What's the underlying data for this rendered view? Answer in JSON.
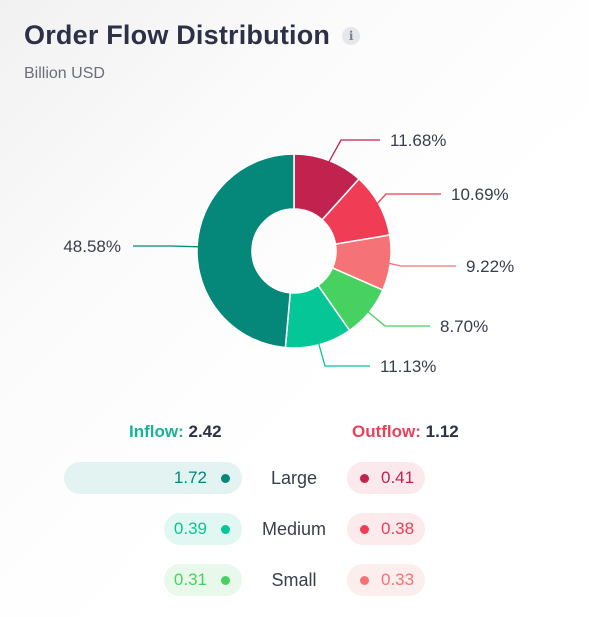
{
  "header": {
    "title": "Order Flow Distribution",
    "info_icon": "info-icon",
    "subtitle": "Billion USD"
  },
  "chart_data": {
    "type": "pie",
    "donut": true,
    "labels": [
      "Outflow Large",
      "Outflow Medium",
      "Outflow Small",
      "Inflow Small",
      "Inflow Medium",
      "Inflow Large"
    ],
    "values": [
      11.68,
      10.69,
      9.22,
      8.7,
      11.13,
      48.58
    ],
    "display_labels": [
      "11.68%",
      "10.69%",
      "9.22%",
      "8.70%",
      "11.13%",
      "48.58%"
    ],
    "colors": [
      "#c2224e",
      "#f13c55",
      "#f57277",
      "#46d160",
      "#05c696",
      "#05877a"
    ]
  },
  "summary": {
    "inflow_label": "Inflow:",
    "inflow_value": "2.42",
    "outflow_label": "Outflow:",
    "outflow_value": "1.12"
  },
  "rows": [
    {
      "label": "Large",
      "inflow": "1.72",
      "inflow_fraction": 0.711,
      "outflow": "0.41",
      "in_color": "#05877a",
      "in_bg": "#e2f3f1",
      "out_color": "#c2224e",
      "out_bg": "#fbe9ed"
    },
    {
      "label": "Medium",
      "inflow": "0.39",
      "inflow_fraction": 0.161,
      "outflow": "0.38",
      "in_color": "#05c696",
      "in_bg": "#e0f8f1",
      "out_color": "#f13c55",
      "out_bg": "#fdeaec"
    },
    {
      "label": "Small",
      "inflow": "0.31",
      "inflow_fraction": 0.128,
      "outflow": "0.33",
      "in_color": "#46d160",
      "in_bg": "#e8f9eb",
      "out_color": "#f57277",
      "out_bg": "#fdeeee"
    }
  ]
}
